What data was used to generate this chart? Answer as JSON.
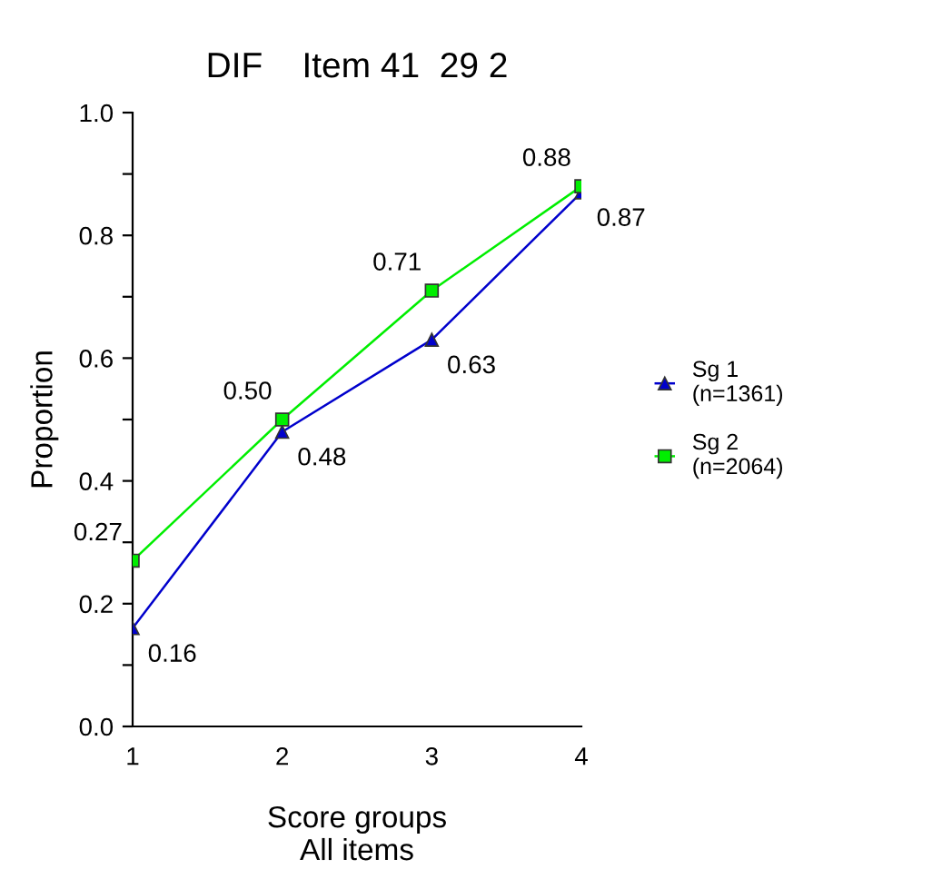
{
  "chart_data": {
    "type": "line",
    "title": "DIF    Item 41  29 2",
    "xlabel": "Score groups\nAll items",
    "ylabel": "Proportion",
    "x": [
      1,
      2,
      3,
      4
    ],
    "xlim": [
      1,
      4
    ],
    "xticks": [
      1,
      2,
      3,
      4
    ],
    "ylim": [
      0,
      1
    ],
    "yticks": [
      {
        "value": 0,
        "label": "0.0"
      },
      {
        "value": 0.1,
        "label": null
      },
      {
        "value": 0.2,
        "label": "0.2"
      },
      {
        "value": 0.3,
        "label": null
      },
      {
        "value": 0.4,
        "label": "0.4"
      },
      {
        "value": 0.5,
        "label": null
      },
      {
        "value": 0.6,
        "label": "0.6"
      },
      {
        "value": 0.7,
        "label": null
      },
      {
        "value": 0.8,
        "label": "0.8"
      },
      {
        "value": 0.9,
        "label": null
      },
      {
        "value": 1,
        "label": "1.0"
      }
    ],
    "series": [
      {
        "name": "Sg 1\n(n=1361)",
        "color": "#0000cc",
        "marker": "triangle",
        "values": [
          0.16,
          0.48,
          0.63,
          0.87
        ],
        "value_labels": [
          "0.16",
          "0.48",
          "0.63",
          "0.87"
        ]
      },
      {
        "name": "Sg 2\n(n=2064)",
        "color": "#00ee00",
        "marker": "square",
        "values": [
          0.27,
          0.5,
          0.71,
          0.88
        ],
        "value_labels": [
          "0.27",
          "0.50",
          "0.71",
          "0.88"
        ]
      }
    ],
    "legend": "right"
  }
}
